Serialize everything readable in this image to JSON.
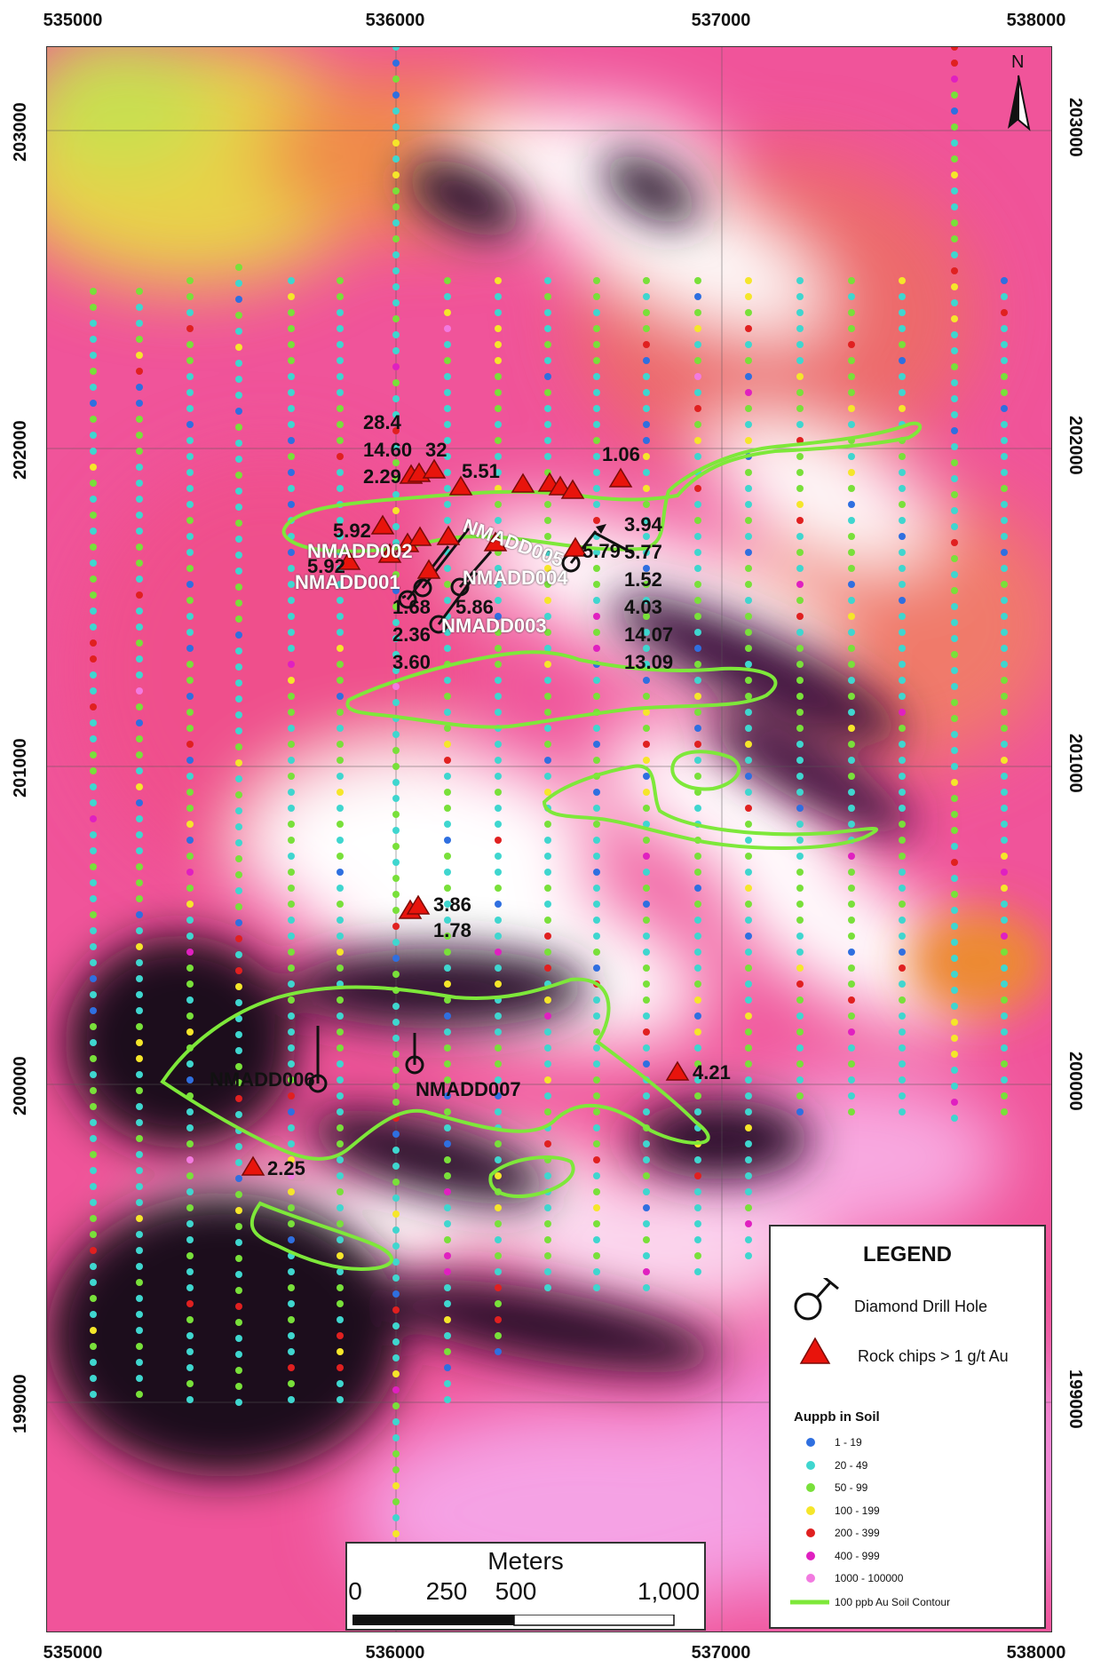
{
  "axes": {
    "x_ticks": [
      "535000",
      "536000",
      "537000",
      "538000"
    ],
    "y_ticks": [
      "203000",
      "202000",
      "201000",
      "200000",
      "199000"
    ]
  },
  "north": {
    "label": "N"
  },
  "drill_hole_labels": [
    {
      "name": "NMADD001"
    },
    {
      "name": "NMADD002"
    },
    {
      "name": "NMADD003"
    },
    {
      "name": "NMADD004"
    },
    {
      "name": "NMADD005"
    },
    {
      "name": "NMADD006"
    },
    {
      "name": "NMADD007"
    }
  ],
  "rock_chip_labels": [
    "28.4",
    "14.60",
    "2.29",
    "32",
    "5.51",
    "1.06",
    "5.92",
    "5.92",
    "1.68",
    "2.36",
    "3.60",
    "5.86",
    "3.94",
    "5.77",
    "1.52",
    "4.03",
    "14.07",
    "13.09",
    "5.79",
    "3.86",
    "1.78",
    "4.21",
    "2.25"
  ],
  "legend": {
    "title": "LEGEND",
    "drill_hole": "Diamond Drill Hole",
    "rock_chips": "Rock chips > 1 g/t Au",
    "soil_title": "Auppb in Soil",
    "soil_classes": [
      {
        "label": "1 - 19",
        "color": "#2f6fe0"
      },
      {
        "label": "20 - 49",
        "color": "#3fd6cf"
      },
      {
        "label": "50 - 99",
        "color": "#79e03a"
      },
      {
        "label": "100 - 199",
        "color": "#f5e62a"
      },
      {
        "label": "200 - 399",
        "color": "#e02020"
      },
      {
        "label": "400 - 999",
        "color": "#e020c0"
      },
      {
        "label": "1000 - 100000",
        "color": "#f27ae0"
      }
    ],
    "contour": "100 ppb Au Soil Contour",
    "contour_color": "#7ee83a",
    "rock_chip_color": "#e8140c"
  },
  "scale": {
    "title": "Meters",
    "ticks": [
      "0",
      "250",
      "500",
      "1,000"
    ]
  }
}
